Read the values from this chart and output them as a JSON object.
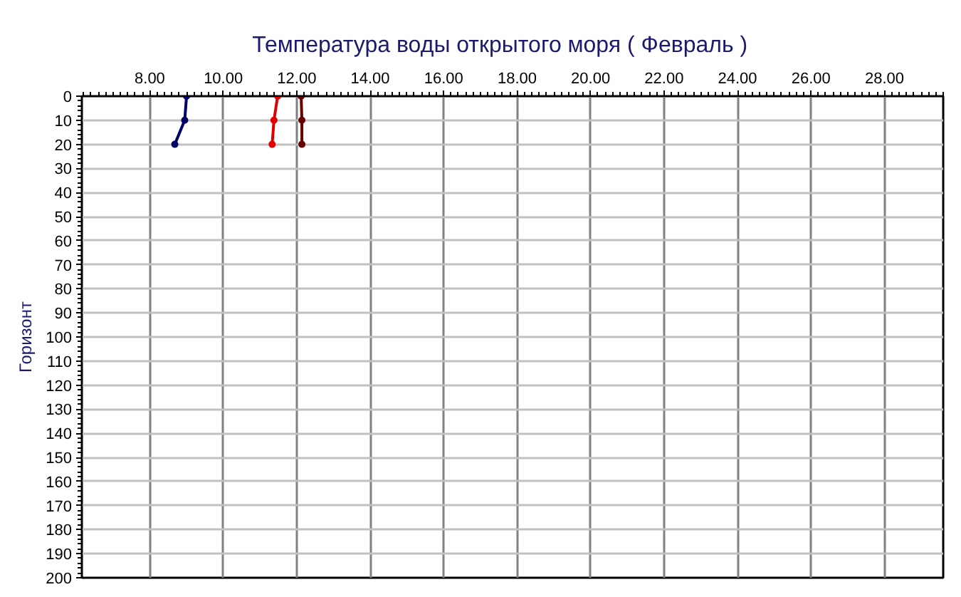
{
  "chart_data": {
    "type": "line",
    "title": "Температура воды открытого моря     ( Февраль )",
    "ylabel": "Горизонт",
    "series": [
      {
        "color": "#000066",
        "x": [
          9.0,
          8.95,
          8.68
        ],
        "values": [
          0,
          10,
          20
        ]
      },
      {
        "color": "#e00000",
        "x": [
          11.48,
          11.38,
          11.33
        ],
        "values": [
          0,
          10,
          20
        ]
      },
      {
        "color": "#660000",
        "x": [
          12.12,
          12.14,
          12.14
        ],
        "values": [
          0,
          10,
          20
        ]
      }
    ],
    "xlim": [
      6.15,
      29.6
    ],
    "xticks": [
      {
        "value": 8,
        "label": "8.00"
      },
      {
        "value": 10,
        "label": "10.00"
      },
      {
        "value": 12,
        "label": "12.00"
      },
      {
        "value": 14,
        "label": "14.00"
      },
      {
        "value": 16,
        "label": "16.00"
      },
      {
        "value": 18,
        "label": "18.00"
      },
      {
        "value": 20,
        "label": "20.00"
      },
      {
        "value": 22,
        "label": "22.00"
      },
      {
        "value": 24,
        "label": "24.00"
      },
      {
        "value": 26,
        "label": "26.00"
      },
      {
        "value": 28,
        "label": "28.00"
      }
    ],
    "ylim": [
      200,
      0
    ],
    "yticks": [
      0,
      10,
      20,
      30,
      40,
      50,
      60,
      70,
      80,
      90,
      100,
      110,
      120,
      130,
      140,
      150,
      160,
      170,
      180,
      190,
      200
    ],
    "grid": true,
    "marker": "circle",
    "line_style": "solid"
  }
}
